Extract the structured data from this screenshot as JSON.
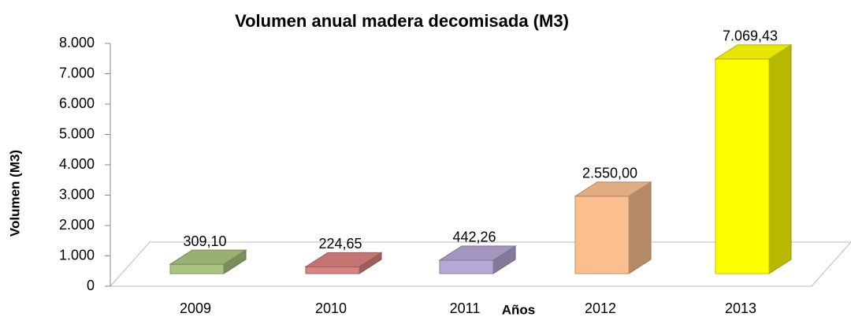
{
  "chart_data": {
    "type": "bar3d",
    "title": "Volumen anual madera decomisada (M3)",
    "x_label": "Años",
    "y_label": "Volumen (M3)",
    "categories": [
      "2009",
      "2010",
      "2011",
      "2012",
      "2013"
    ],
    "values": [
      309.1,
      224.65,
      442.26,
      2550.0,
      7069.43
    ],
    "value_labels": [
      "309,10",
      "224,65",
      "442,26",
      "2.550,00",
      "7.069,43"
    ],
    "colors": [
      "#a9c47f",
      "#d9827f",
      "#b6a8d4",
      "#fbbf8f",
      "#ffff00"
    ],
    "ylim": [
      0,
      8000
    ],
    "yticks": [
      0,
      {
        "value": 1000,
        "label": "1.000"
      },
      {
        "value": 2000,
        "label": "2.000"
      },
      {
        "value": 3000,
        "label": "3.000"
      },
      {
        "value": 4000,
        "label": "4.000"
      },
      {
        "value": 5000,
        "label": "5.000"
      },
      {
        "value": 6000,
        "label": "6.000"
      },
      {
        "value": 7000,
        "label": "7.000"
      },
      {
        "value": 8000,
        "label": "8.000"
      }
    ]
  }
}
